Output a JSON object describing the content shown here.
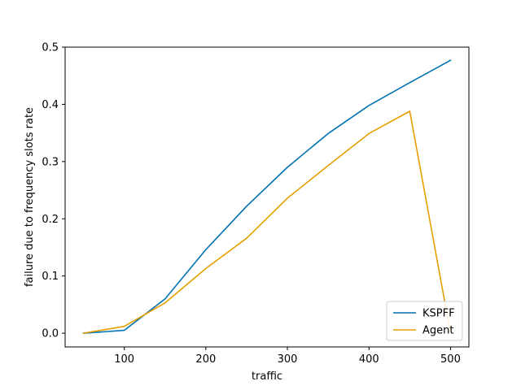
{
  "chart_data": {
    "type": "line",
    "title": "",
    "xlabel": "traffic",
    "ylabel": "failure due to frequency slots rate",
    "xlim": [
      27.5,
      522.5
    ],
    "ylim": [
      -0.024,
      0.5
    ],
    "xticks": [
      100,
      200,
      300,
      400,
      500
    ],
    "xtick_labels": [
      "100",
      "200",
      "300",
      "400",
      "500"
    ],
    "yticks": [
      0.0,
      0.1,
      0.2,
      0.3,
      0.4,
      0.5
    ],
    "ytick_labels": [
      "0.0",
      "0.1",
      "0.2",
      "0.3",
      "0.4",
      "0.5"
    ],
    "grid": false,
    "legend_position": "lower-right",
    "series": [
      {
        "name": "KSPFF",
        "color": "#0072b2",
        "x": [
          50,
          100,
          150,
          200,
          250,
          300,
          350,
          400,
          450,
          500
        ],
        "y": [
          0.0,
          0.005,
          0.06,
          0.146,
          0.222,
          0.29,
          0.349,
          0.398,
          0.438,
          0.477
        ]
      },
      {
        "name": "Agent",
        "color": "#e69f00",
        "x": [
          50,
          100,
          150,
          200,
          250,
          300,
          350,
          400,
          450,
          500
        ],
        "y": [
          0.0,
          0.012,
          0.053,
          0.113,
          0.166,
          0.236,
          0.293,
          0.349,
          0.388,
          0.0
        ]
      }
    ]
  }
}
